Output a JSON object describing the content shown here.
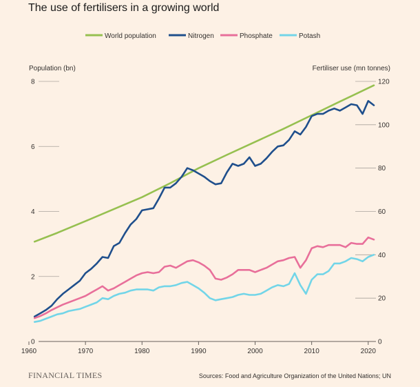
{
  "title": "The use of fertilisers in a growing world",
  "source": "Sources: Food and Agriculture Organization of the United Nations; UN",
  "brand": "FINANCIAL TIMES",
  "chart_data": {
    "type": "line",
    "title": "The use of fertilisers in a growing world",
    "legend_position": "top",
    "grid": false,
    "x_ticks": [
      1960,
      1970,
      1980,
      1990,
      2000,
      2010,
      2020
    ],
    "xlim": [
      1960,
      2021
    ],
    "left_axis": {
      "label": "Population (bn)",
      "ylim": [
        0,
        8
      ],
      "ticks": [
        0,
        2,
        4,
        6,
        8
      ]
    },
    "right_axis": {
      "label": "Fertiliser use (mn tonnes)",
      "ylim": [
        0,
        120
      ],
      "ticks": [
        0,
        20,
        40,
        60,
        80,
        100,
        120
      ]
    },
    "series": [
      {
        "name": "World population",
        "axis": "left",
        "color": "#96c050",
        "x": [
          1961,
          1965,
          1970,
          1975,
          1980,
          1985,
          1990,
          1995,
          2000,
          2005,
          2010,
          2015,
          2021
        ],
        "values": [
          3.07,
          3.34,
          3.7,
          4.07,
          4.44,
          4.87,
          5.33,
          5.74,
          6.14,
          6.54,
          6.96,
          7.38,
          7.88
        ]
      },
      {
        "name": "Nitrogen",
        "axis": "right",
        "color": "#1f4f8c",
        "x": [
          1961,
          1962,
          1963,
          1964,
          1965,
          1966,
          1967,
          1968,
          1969,
          1970,
          1971,
          1972,
          1973,
          1974,
          1975,
          1976,
          1977,
          1978,
          1979,
          1980,
          1981,
          1982,
          1983,
          1984,
          1985,
          1986,
          1987,
          1988,
          1989,
          1990,
          1991,
          1992,
          1993,
          1994,
          1995,
          1996,
          1997,
          1998,
          1999,
          2000,
          2001,
          2002,
          2003,
          2004,
          2005,
          2006,
          2007,
          2008,
          2009,
          2010,
          2011,
          2012,
          2013,
          2014,
          2015,
          2016,
          2017,
          2018,
          2019,
          2020,
          2021
        ],
        "values": [
          11.5,
          13,
          14.5,
          16.5,
          19.5,
          22,
          24,
          26,
          28,
          31.5,
          33.5,
          36,
          39,
          38.5,
          44,
          45.5,
          50,
          54,
          56.5,
          60.5,
          61,
          61.5,
          66,
          71,
          71,
          73,
          76,
          80,
          79,
          77.5,
          76,
          74,
          72.5,
          73,
          78,
          82,
          81,
          82,
          85,
          81,
          82,
          84.5,
          87.5,
          90,
          90.5,
          93,
          97,
          95.5,
          99,
          104,
          105,
          105,
          106.5,
          107.5,
          106.5,
          108,
          109.5,
          109,
          105,
          111,
          109
        ]
      },
      {
        "name": "Phosphate",
        "axis": "right",
        "color": "#e86f9a",
        "x": [
          1961,
          1962,
          1963,
          1964,
          1965,
          1966,
          1967,
          1968,
          1969,
          1970,
          1971,
          1972,
          1973,
          1974,
          1975,
          1976,
          1977,
          1978,
          1979,
          1980,
          1981,
          1982,
          1983,
          1984,
          1985,
          1986,
          1987,
          1988,
          1989,
          1990,
          1991,
          1992,
          1993,
          1994,
          1995,
          1996,
          1997,
          1998,
          1999,
          2000,
          2001,
          2002,
          2003,
          2004,
          2005,
          2006,
          2007,
          2008,
          2009,
          2010,
          2011,
          2012,
          2013,
          2014,
          2015,
          2016,
          2017,
          2018,
          2019,
          2020,
          2021
        ],
        "values": [
          10.8,
          11.7,
          13,
          14.5,
          15.8,
          17,
          18,
          19,
          20,
          21,
          22.5,
          24,
          25.5,
          23.5,
          24.5,
          26,
          27.5,
          29,
          30.5,
          31.5,
          32,
          31.5,
          32,
          34.5,
          35,
          34,
          35.5,
          37,
          37.5,
          36.5,
          35,
          33,
          29,
          28.5,
          29.5,
          31,
          33,
          33,
          33,
          32,
          33,
          34,
          35.5,
          37,
          37.5,
          38.5,
          39,
          34,
          37.5,
          43,
          44,
          43.5,
          44.5,
          44.5,
          44.5,
          43.5,
          45.5,
          45,
          45,
          48,
          47
        ]
      },
      {
        "name": "Potash",
        "axis": "right",
        "color": "#72d5e8",
        "x": [
          1961,
          1962,
          1963,
          1964,
          1965,
          1966,
          1967,
          1968,
          1969,
          1970,
          1971,
          1972,
          1973,
          1974,
          1975,
          1976,
          1977,
          1978,
          1979,
          1980,
          1981,
          1982,
          1983,
          1984,
          1985,
          1986,
          1987,
          1988,
          1989,
          1990,
          1991,
          1992,
          1993,
          1994,
          1995,
          1996,
          1997,
          1998,
          1999,
          2000,
          2001,
          2002,
          2003,
          2004,
          2005,
          2006,
          2007,
          2008,
          2009,
          2010,
          2011,
          2012,
          2013,
          2014,
          2015,
          2016,
          2017,
          2018,
          2019,
          2020,
          2021
        ],
        "values": [
          9,
          9.5,
          10.5,
          11.5,
          12.5,
          13,
          14,
          14.5,
          15,
          16,
          17,
          18,
          20,
          19.5,
          21,
          22,
          22.5,
          23.5,
          24,
          24,
          24,
          23.5,
          25,
          25.5,
          25.5,
          26,
          27,
          27.5,
          26,
          24.5,
          22.5,
          20,
          19,
          19.5,
          20,
          20.5,
          21.5,
          22,
          21.5,
          21.5,
          22,
          23.5,
          25,
          26,
          25.5,
          26.5,
          31.5,
          26,
          22,
          28.5,
          31,
          31,
          32.5,
          36,
          36,
          37,
          38.5,
          38,
          37,
          39,
          40
        ]
      }
    ]
  }
}
